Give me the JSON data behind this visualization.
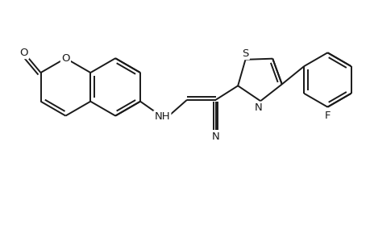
{
  "bg_color": "#ffffff",
  "line_color": "#1a1a1a",
  "line_width": 1.4,
  "figsize": [
    4.6,
    3.0
  ],
  "dpi": 100,
  "xlim": [
    0,
    9.2
  ],
  "ylim": [
    0,
    6.0
  ]
}
